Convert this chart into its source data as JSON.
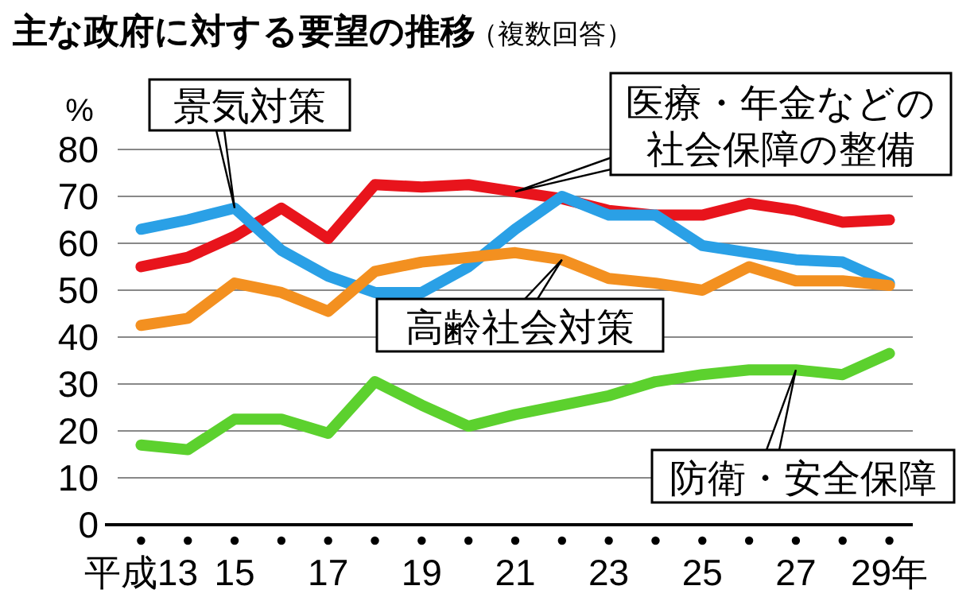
{
  "chart_data": {
    "type": "line",
    "title": "主な政府に対する要望の推移",
    "subtitle": "（複数回答）",
    "ylabel": "%",
    "categories": [
      "平成13",
      null,
      "15",
      null,
      "17",
      null,
      "19",
      null,
      "21",
      null,
      "23",
      null,
      "25",
      null,
      "27",
      null,
      "29年"
    ],
    "series": [
      {
        "name": "医療・年金などの社会保障の整備",
        "color": "#e8141c",
        "values": [
          55,
          57,
          61.5,
          67.5,
          61,
          72.5,
          72,
          72.5,
          71,
          69.5,
          67,
          66,
          66,
          68.5,
          67,
          64.5,
          65
        ]
      },
      {
        "name": "景気対策",
        "color": "#2aa0e6",
        "values": [
          63,
          65,
          67.5,
          58.5,
          53,
          49.5,
          49.5,
          55,
          63,
          70,
          66,
          66,
          59.5,
          58,
          56.5,
          56,
          51.5
        ]
      },
      {
        "name": "高齢社会対策",
        "color": "#f39020",
        "values": [
          42.5,
          44,
          51.5,
          49.5,
          45.5,
          54,
          56,
          57,
          58,
          56.5,
          52.5,
          51.5,
          50,
          55,
          52,
          52,
          51
        ]
      },
      {
        "name": "防衛・安全保障",
        "color": "#5cd12e",
        "values": [
          17,
          16,
          22.5,
          22.5,
          19.5,
          30.5,
          25.5,
          21,
          23.5,
          25.5,
          27.5,
          30.5,
          32,
          33,
          33,
          32,
          36.5
        ]
      }
    ],
    "ylim": [
      0,
      80
    ],
    "yticks": [
      0,
      10,
      20,
      30,
      40,
      50,
      60,
      70,
      80
    ],
    "grid": "y",
    "marker": "none",
    "line_style": "solid"
  }
}
